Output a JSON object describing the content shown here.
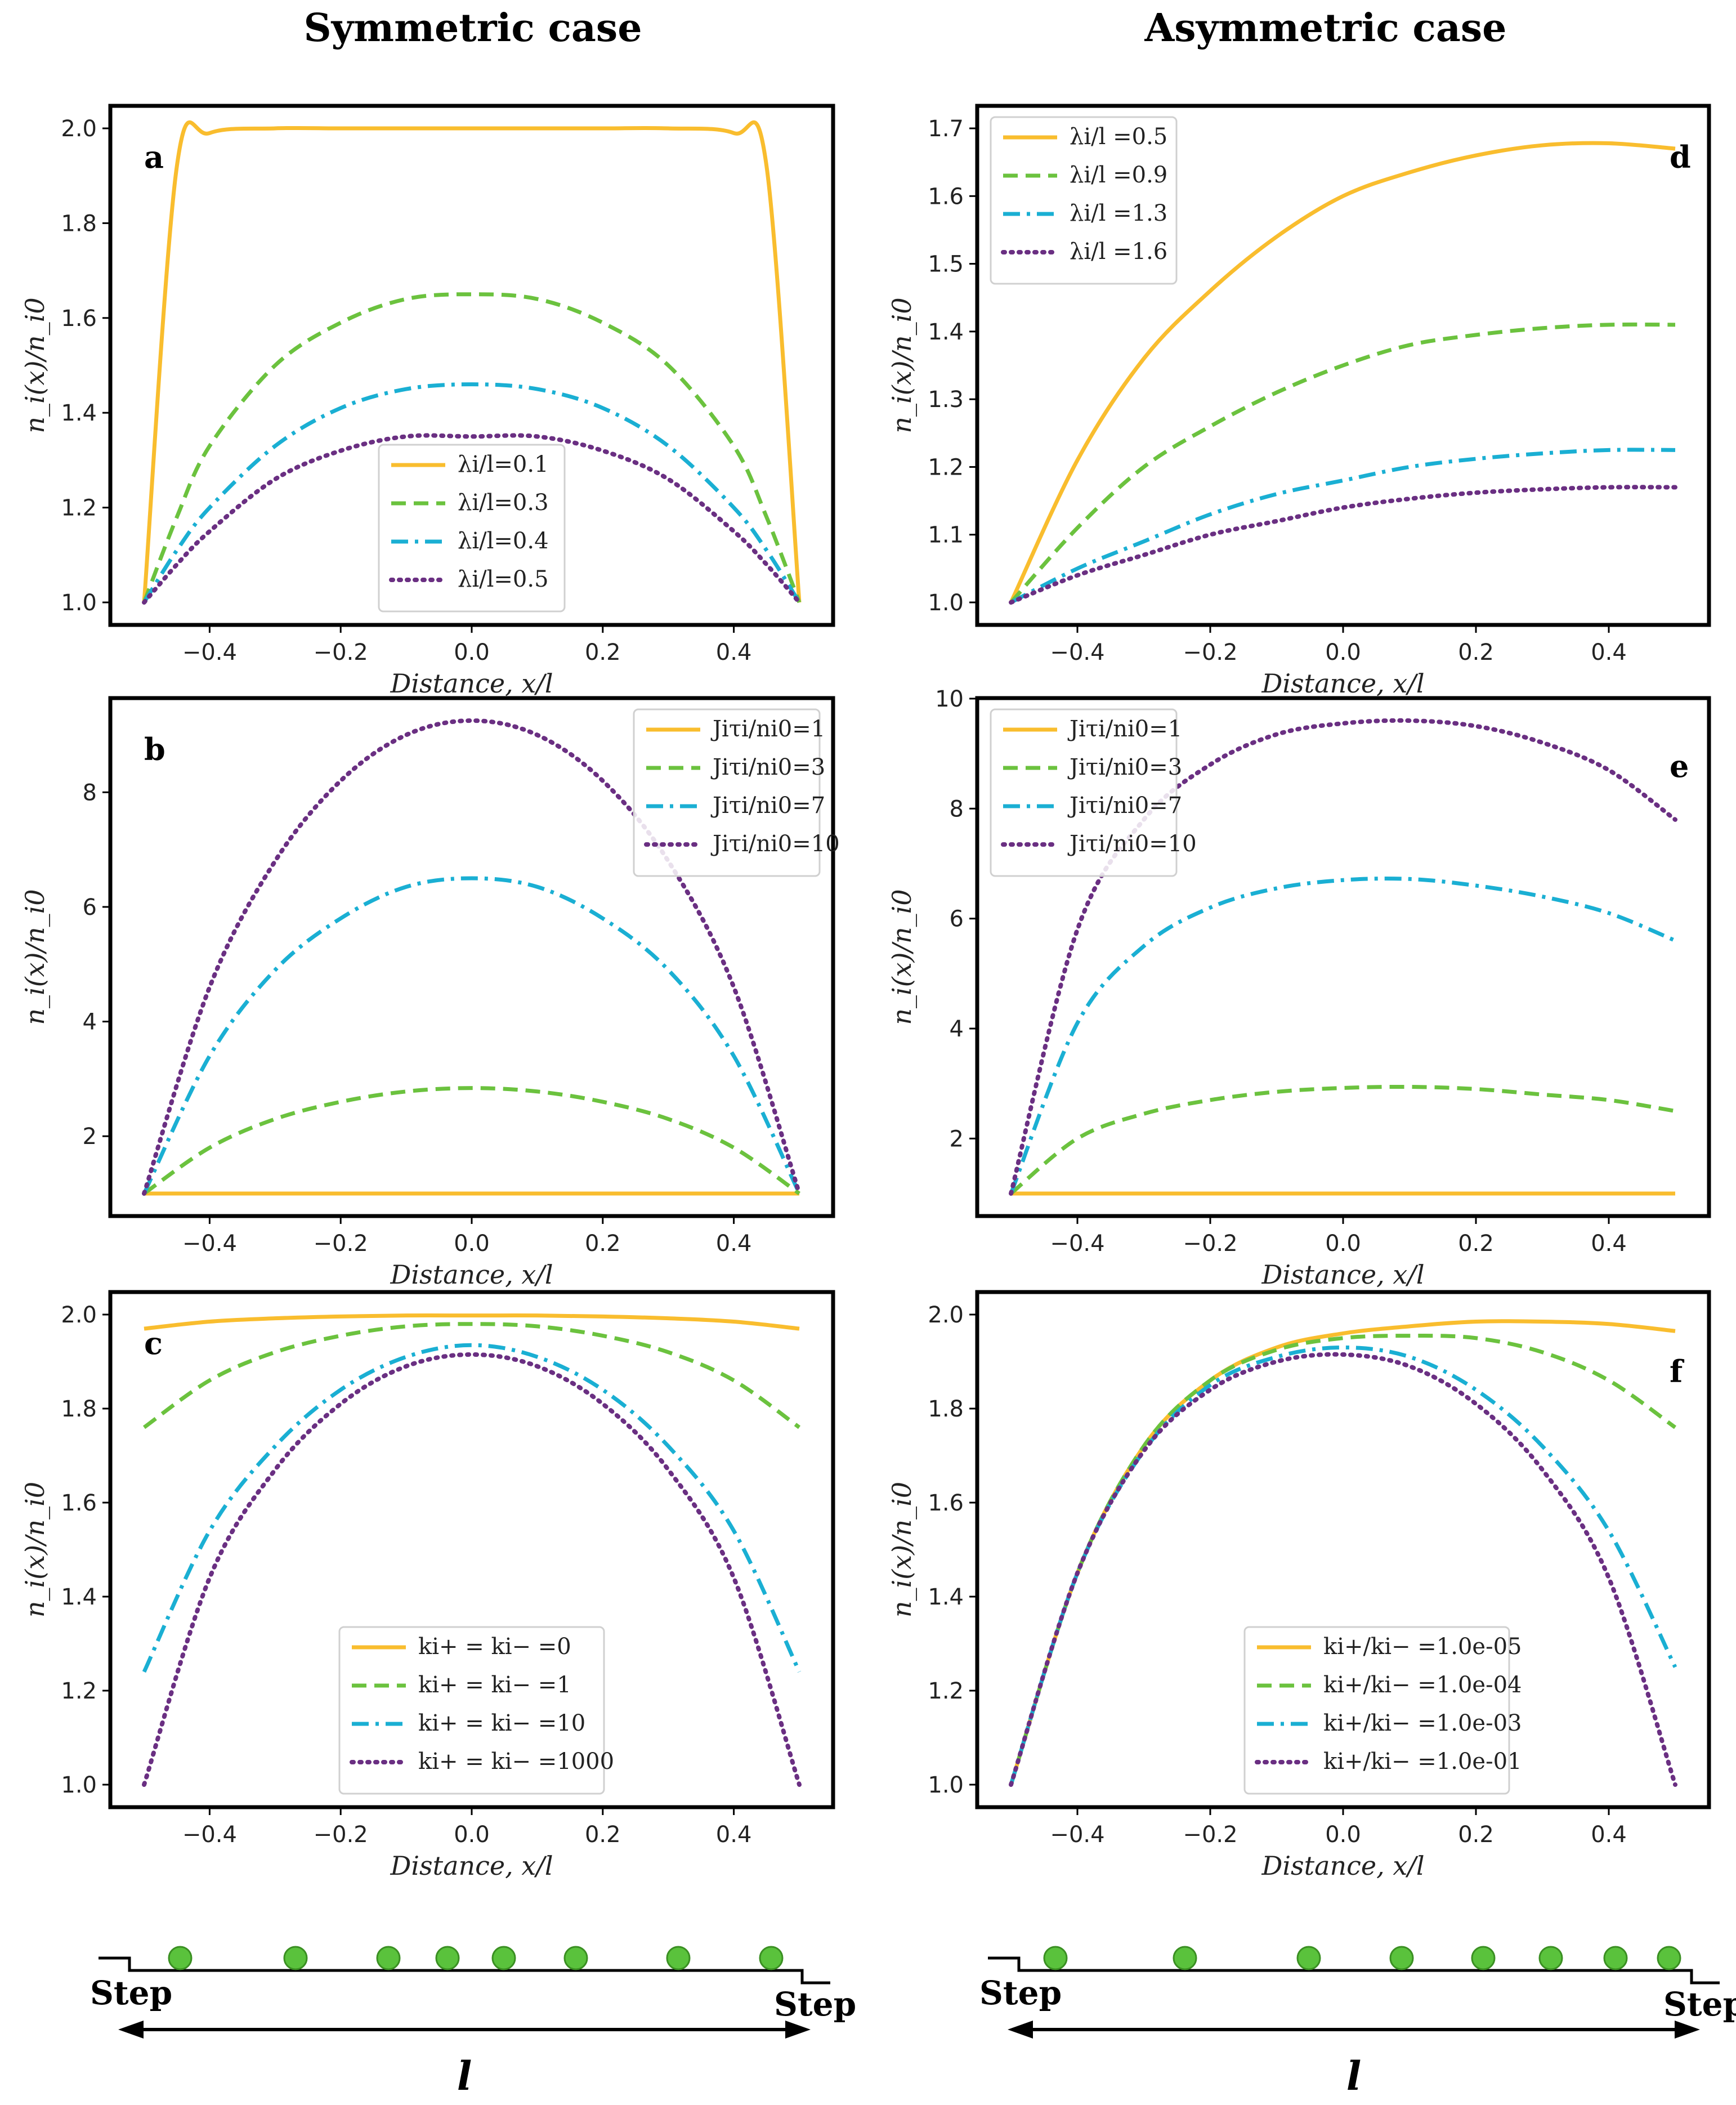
{
  "titles": {
    "left": "Symmetric case",
    "right": "Asymmetric case"
  },
  "xlabel": "Distance, x/l",
  "ylabel": "n_i(x)/n_i0",
  "colors": {
    "yellow": "#F9BD2E",
    "green": "#6BC23E",
    "cyan": "#1AAFD3",
    "purple": "#6A2F82"
  },
  "chart_data": [
    {
      "id": "a",
      "type": "line",
      "panel_label": "a",
      "legend_loc": "lower-center",
      "xlim": [
        -0.5,
        0.5
      ],
      "ylim": [
        1.0,
        2.0
      ],
      "xticks": [
        "-0.4",
        "-0.2",
        "0.0",
        "0.2",
        "0.4"
      ],
      "yticks": [
        "1.0",
        "1.2",
        "1.4",
        "1.6",
        "1.8",
        "2.0"
      ],
      "x": [
        -0.5,
        -0.45,
        -0.4,
        -0.3,
        -0.2,
        -0.1,
        0.0,
        0.1,
        0.2,
        0.3,
        0.4,
        0.45,
        0.5
      ],
      "series": [
        {
          "name": "λi/l=0.1",
          "style": "solid",
          "values": [
            1.0,
            1.92,
            1.99,
            2.0,
            2.0,
            2.0,
            2.0,
            2.0,
            2.0,
            2.0,
            1.99,
            1.92,
            1.0
          ]
        },
        {
          "name": "λi/l=0.3",
          "style": "dashed",
          "values": [
            1.0,
            1.18,
            1.33,
            1.5,
            1.59,
            1.64,
            1.65,
            1.64,
            1.59,
            1.5,
            1.33,
            1.18,
            1.0
          ]
        },
        {
          "name": "λi/l=0.4",
          "style": "dashdot",
          "values": [
            1.0,
            1.11,
            1.2,
            1.33,
            1.41,
            1.45,
            1.46,
            1.45,
            1.41,
            1.33,
            1.2,
            1.11,
            1.0
          ]
        },
        {
          "name": "λi/l=0.5",
          "style": "dotted",
          "values": [
            1.0,
            1.08,
            1.15,
            1.26,
            1.32,
            1.35,
            1.35,
            1.35,
            1.32,
            1.26,
            1.15,
            1.08,
            1.0
          ]
        }
      ],
      "legend": [
        "λi/l=0.1",
        "λi/l=0.3",
        "λi/l=0.4",
        "λi/l=0.5"
      ]
    },
    {
      "id": "d",
      "type": "line",
      "panel_label": "d",
      "legend_loc": "upper-left",
      "xlim": [
        -0.5,
        0.5
      ],
      "ylim": [
        1.0,
        1.7
      ],
      "xticks": [
        "-0.4",
        "-0.2",
        "0.0",
        "0.2",
        "0.4"
      ],
      "yticks": [
        "1.0",
        "1.1",
        "1.2",
        "1.3",
        "1.4",
        "1.5",
        "1.6",
        "1.7"
      ],
      "x": [
        -0.5,
        -0.4,
        -0.3,
        -0.2,
        -0.1,
        0.0,
        0.1,
        0.2,
        0.3,
        0.4,
        0.5
      ],
      "series": [
        {
          "name": "λi/l =0.5",
          "style": "solid",
          "values": [
            1.0,
            1.21,
            1.36,
            1.46,
            1.54,
            1.6,
            1.635,
            1.66,
            1.675,
            1.678,
            1.67
          ]
        },
        {
          "name": "λi/l =0.9",
          "style": "dashed",
          "values": [
            1.0,
            1.11,
            1.2,
            1.26,
            1.31,
            1.35,
            1.38,
            1.395,
            1.405,
            1.41,
            1.41
          ]
        },
        {
          "name": "λi/l =1.3",
          "style": "dashdot",
          "values": [
            1.0,
            1.05,
            1.09,
            1.13,
            1.16,
            1.18,
            1.2,
            1.212,
            1.22,
            1.225,
            1.225
          ]
        },
        {
          "name": "λi/l =1.6",
          "style": "dotted",
          "values": [
            1.0,
            1.04,
            1.07,
            1.1,
            1.12,
            1.14,
            1.153,
            1.162,
            1.167,
            1.17,
            1.17
          ]
        }
      ],
      "legend": [
        "λi/l =0.5",
        "λi/l =0.9",
        "λi/l =1.3",
        "λi/l =1.6"
      ]
    },
    {
      "id": "b",
      "type": "line",
      "panel_label": "b",
      "legend_loc": "upper-right",
      "xlim": [
        -0.5,
        0.5
      ],
      "ylim": [
        1.0,
        9.25
      ],
      "xticks": [
        "-0.4",
        "-0.2",
        "0.0",
        "0.2",
        "0.4"
      ],
      "yticks": [
        "2",
        "4",
        "6",
        "8"
      ],
      "x": [
        -0.5,
        -0.4,
        -0.3,
        -0.2,
        -0.1,
        0.0,
        0.1,
        0.2,
        0.3,
        0.4,
        0.5
      ],
      "series": [
        {
          "name": "Jiτi/ni0=1",
          "style": "solid",
          "values": [
            1,
            1,
            1,
            1,
            1,
            1,
            1,
            1,
            1,
            1,
            1
          ]
        },
        {
          "name": "Jiτi/ni0=3",
          "style": "dashed",
          "values": [
            1.0,
            1.8,
            2.3,
            2.6,
            2.78,
            2.84,
            2.78,
            2.6,
            2.3,
            1.8,
            1.0
          ]
        },
        {
          "name": "Jiτi/ni0=7",
          "style": "dashdot",
          "values": [
            1.0,
            3.4,
            4.9,
            5.8,
            6.35,
            6.5,
            6.35,
            5.8,
            4.9,
            3.4,
            1.0
          ]
        },
        {
          "name": "Jiτi/ni0=10",
          "style": "dotted",
          "values": [
            1.0,
            4.6,
            6.8,
            8.2,
            9.0,
            9.25,
            9.0,
            8.2,
            6.8,
            4.6,
            1.0
          ]
        }
      ],
      "legend": [
        "Jiτi/ni0=1",
        "Jiτi/ni0=3",
        "Jiτi/ni0=7",
        "Jiτi/ni0=10"
      ]
    },
    {
      "id": "e",
      "type": "line",
      "panel_label": "e",
      "legend_loc": "upper-left",
      "xlim": [
        -0.5,
        0.5
      ],
      "ylim": [
        1.0,
        9.6
      ],
      "xticks": [
        "-0.4",
        "-0.2",
        "0.0",
        "0.2",
        "0.4"
      ],
      "yticks": [
        "2",
        "4",
        "6",
        "8",
        "10"
      ],
      "x": [
        -0.5,
        -0.4,
        -0.3,
        -0.2,
        -0.1,
        0.0,
        0.1,
        0.2,
        0.3,
        0.4,
        0.5
      ],
      "series": [
        {
          "name": "Jiτi/ni0=1",
          "style": "solid",
          "values": [
            1,
            1,
            1,
            1,
            1,
            1,
            1,
            1,
            1,
            1,
            1
          ]
        },
        {
          "name": "Jiτi/ni0=3",
          "style": "dashed",
          "values": [
            1.0,
            2.0,
            2.45,
            2.7,
            2.85,
            2.92,
            2.94,
            2.9,
            2.8,
            2.7,
            2.5
          ]
        },
        {
          "name": "Jiτi/ni0=7",
          "style": "dashdot",
          "values": [
            1.0,
            4.1,
            5.5,
            6.2,
            6.55,
            6.7,
            6.72,
            6.6,
            6.4,
            6.1,
            5.6
          ]
        },
        {
          "name": "Jiτi/ni0=10",
          "style": "dotted",
          "values": [
            1.0,
            5.8,
            7.8,
            8.8,
            9.35,
            9.55,
            9.6,
            9.5,
            9.2,
            8.7,
            7.8
          ]
        }
      ],
      "legend": [
        "Jiτi/ni0=1",
        "Jiτi/ni0=3",
        "Jiτi/ni0=7",
        "Jiτi/ni0=10"
      ]
    },
    {
      "id": "c",
      "type": "line",
      "panel_label": "c",
      "legend_loc": "lower-center",
      "xlim": [
        -0.5,
        0.5
      ],
      "ylim": [
        1.0,
        2.0
      ],
      "xticks": [
        "-0.4",
        "-0.2",
        "0.0",
        "0.2",
        "0.4"
      ],
      "yticks": [
        "1.0",
        "1.2",
        "1.4",
        "1.6",
        "1.8",
        "2.0"
      ],
      "x": [
        -0.5,
        -0.4,
        -0.3,
        -0.2,
        -0.1,
        0.0,
        0.1,
        0.2,
        0.3,
        0.4,
        0.5
      ],
      "series": [
        {
          "name": "ki+ = ki− =0",
          "style": "solid",
          "values": [
            1.97,
            1.985,
            1.992,
            1.996,
            1.998,
            1.998,
            1.998,
            1.996,
            1.992,
            1.985,
            1.97
          ]
        },
        {
          "name": "ki+ = ki− =1",
          "style": "dashed",
          "values": [
            1.76,
            1.86,
            1.92,
            1.955,
            1.975,
            1.98,
            1.975,
            1.955,
            1.92,
            1.86,
            1.76
          ]
        },
        {
          "name": "ki+ = ki− =10",
          "style": "dashdot",
          "values": [
            1.24,
            1.54,
            1.72,
            1.84,
            1.91,
            1.935,
            1.91,
            1.84,
            1.72,
            1.54,
            1.24
          ]
        },
        {
          "name": "ki+ = ki− =1000",
          "style": "dotted",
          "values": [
            1.0,
            1.44,
            1.67,
            1.81,
            1.89,
            1.915,
            1.89,
            1.81,
            1.67,
            1.44,
            1.0
          ]
        }
      ],
      "legend": [
        "ki+ = ki− =0",
        "ki+ = ki− =1",
        "ki+ = ki− =10",
        "ki+ = ki− =1000"
      ]
    },
    {
      "id": "f",
      "type": "line",
      "panel_label": "f",
      "legend_loc": "lower-center",
      "xlim": [
        -0.5,
        0.5
      ],
      "ylim": [
        1.0,
        2.0
      ],
      "xticks": [
        "-0.4",
        "-0.2",
        "0.0",
        "0.2",
        "0.4"
      ],
      "yticks": [
        "1.0",
        "1.2",
        "1.4",
        "1.6",
        "1.8",
        "2.0"
      ],
      "x": [
        -0.5,
        -0.4,
        -0.3,
        -0.2,
        -0.1,
        0.0,
        0.1,
        0.2,
        0.3,
        0.4,
        0.5
      ],
      "series": [
        {
          "name": "ki+/ki− =1.0e-05",
          "style": "solid",
          "values": [
            1.0,
            1.45,
            1.72,
            1.86,
            1.93,
            1.96,
            1.975,
            1.985,
            1.985,
            1.98,
            1.965
          ]
        },
        {
          "name": "ki+/ki− =1.0e-04",
          "style": "dashed",
          "values": [
            1.0,
            1.45,
            1.72,
            1.86,
            1.925,
            1.95,
            1.955,
            1.95,
            1.92,
            1.86,
            1.76
          ]
        },
        {
          "name": "ki+/ki− =1.0e-03",
          "style": "dashdot",
          "values": [
            1.0,
            1.45,
            1.71,
            1.85,
            1.91,
            1.93,
            1.91,
            1.84,
            1.72,
            1.54,
            1.25
          ]
        },
        {
          "name": "ki+/ki− =1.0e-01",
          "style": "dotted",
          "values": [
            1.0,
            1.45,
            1.71,
            1.84,
            1.9,
            1.915,
            1.89,
            1.81,
            1.67,
            1.44,
            1.0
          ]
        }
      ],
      "legend": [
        "ki+/ki− =1.0e-05",
        "ki+/ki− =1.0e-04",
        "ki+/ki− =1.0e-03",
        "ki+/ki− =1.0e-01"
      ]
    }
  ],
  "schematic": {
    "step_left": "Step",
    "step_right": "Step",
    "length_label": "l"
  }
}
